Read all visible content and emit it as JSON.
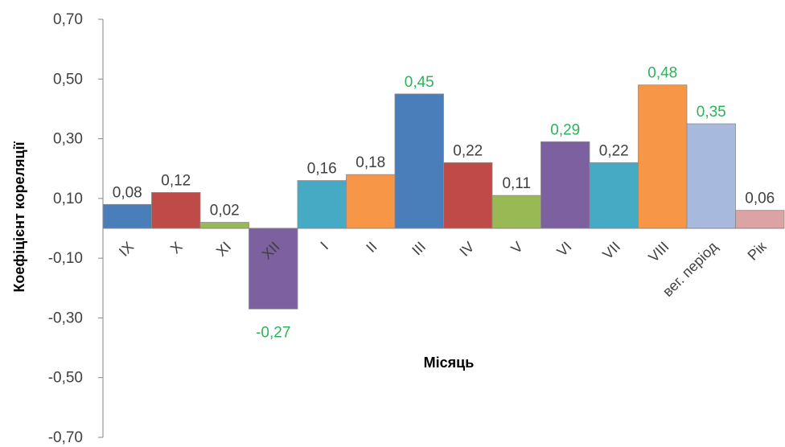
{
  "chart_data": {
    "type": "bar",
    "xlabel": "Місяць",
    "ylabel": "Коефіцієнт кореляції",
    "ylim": [
      -0.7,
      0.7
    ],
    "yticks": [
      "0,70",
      "0,50",
      "0,30",
      "0,10",
      "-0,10",
      "-0,30",
      "-0,50",
      "-0,70"
    ],
    "grid": false,
    "legend": "none",
    "categories": [
      "IX",
      "X",
      "XI",
      "XII",
      "I",
      "II",
      "III",
      "IV",
      "V",
      "VI",
      "VII",
      "VIII",
      "вег. період",
      "Рік"
    ],
    "values": [
      0.08,
      0.12,
      0.02,
      -0.27,
      0.16,
      0.18,
      0.45,
      0.22,
      0.11,
      0.29,
      0.22,
      0.48,
      0.35,
      0.06
    ],
    "value_labels": [
      "0,08",
      "0,12",
      "0,02",
      "-0,27",
      "0,16",
      "0,18",
      "0,45",
      "0,22",
      "0,11",
      "0,29",
      "0,22",
      "0,48",
      "0,35",
      "0,06"
    ],
    "bar_colors": [
      "#4a7ebb",
      "#be4b48",
      "#98b954",
      "#7d60a0",
      "#46aac5",
      "#f79646",
      "#4a7ebb",
      "#be4b48",
      "#98b954",
      "#7d60a0",
      "#46aac5",
      "#f79646",
      "#a7b9dd",
      "#dba3a3"
    ],
    "label_colors": [
      "#404040",
      "#404040",
      "#404040",
      "#2db35a",
      "#404040",
      "#404040",
      "#2db35a",
      "#404040",
      "#404040",
      "#2db35a",
      "#404040",
      "#2db35a",
      "#2db35a",
      "#404040"
    ]
  }
}
